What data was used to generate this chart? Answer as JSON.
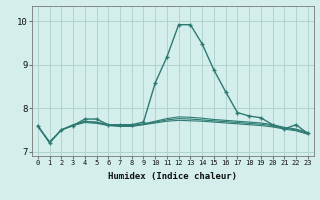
{
  "title": "",
  "xlabel": "Humidex (Indice chaleur)",
  "ylabel": "",
  "bg_color": "#d4eeec",
  "grid_color": "#b0d4d0",
  "line_color": "#2d7a72",
  "xlim": [
    -0.5,
    23.5
  ],
  "ylim": [
    6.9,
    10.35
  ],
  "yticks": [
    7,
    8,
    9,
    10
  ],
  "xticks": [
    0,
    1,
    2,
    3,
    4,
    5,
    6,
    7,
    8,
    9,
    10,
    11,
    12,
    13,
    14,
    15,
    16,
    17,
    18,
    19,
    20,
    21,
    22,
    23
  ],
  "series": [
    {
      "x": [
        0,
        1,
        2,
        3,
        4,
        5,
        6,
        7,
        8,
        9,
        10,
        11,
        12,
        13,
        14,
        15,
        16,
        17,
        18,
        19,
        20,
        21,
        22,
        23
      ],
      "y": [
        7.6,
        7.2,
        7.5,
        7.6,
        7.75,
        7.75,
        7.62,
        7.62,
        7.62,
        7.68,
        8.58,
        9.18,
        9.92,
        9.92,
        9.48,
        8.88,
        8.38,
        7.9,
        7.82,
        7.78,
        7.62,
        7.52,
        7.62,
        7.42
      ],
      "marker": true
    },
    {
      "x": [
        0,
        1,
        2,
        3,
        4,
        5,
        6,
        7,
        8,
        9,
        10,
        11,
        12,
        13,
        14,
        15,
        16,
        17,
        18,
        19,
        20,
        21,
        22,
        23
      ],
      "y": [
        7.58,
        7.22,
        7.5,
        7.62,
        7.7,
        7.68,
        7.62,
        7.6,
        7.6,
        7.64,
        7.7,
        7.76,
        7.8,
        7.79,
        7.77,
        7.74,
        7.72,
        7.7,
        7.68,
        7.66,
        7.62,
        7.56,
        7.52,
        7.44
      ],
      "marker": false
    },
    {
      "x": [
        0,
        1,
        2,
        3,
        4,
        5,
        6,
        7,
        8,
        9,
        10,
        11,
        12,
        13,
        14,
        15,
        16,
        17,
        18,
        19,
        20,
        21,
        22,
        23
      ],
      "y": [
        7.58,
        7.22,
        7.5,
        7.6,
        7.67,
        7.65,
        7.6,
        7.58,
        7.58,
        7.62,
        7.66,
        7.7,
        7.72,
        7.71,
        7.7,
        7.68,
        7.66,
        7.64,
        7.62,
        7.6,
        7.57,
        7.52,
        7.48,
        7.4
      ],
      "marker": false
    },
    {
      "x": [
        0,
        1,
        2,
        3,
        4,
        5,
        6,
        7,
        8,
        9,
        10,
        11,
        12,
        13,
        14,
        15,
        16,
        17,
        18,
        19,
        20,
        21,
        22,
        23
      ],
      "y": [
        7.58,
        7.22,
        7.5,
        7.61,
        7.69,
        7.67,
        7.61,
        7.59,
        7.59,
        7.63,
        7.68,
        7.73,
        7.76,
        7.75,
        7.73,
        7.71,
        7.69,
        7.67,
        7.65,
        7.63,
        7.6,
        7.54,
        7.5,
        7.42
      ],
      "marker": false
    }
  ]
}
